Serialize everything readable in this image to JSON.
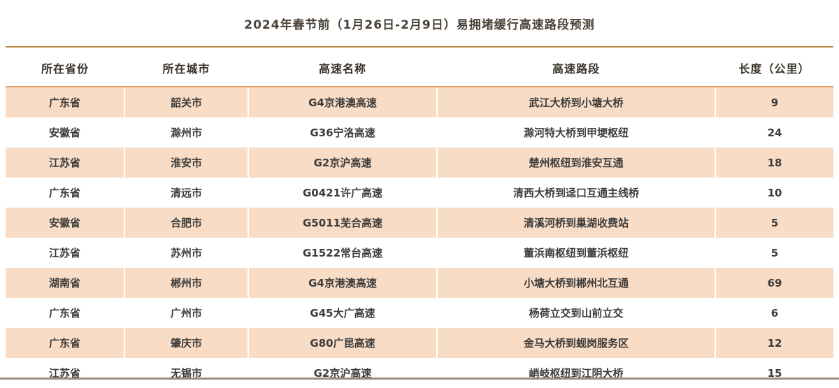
{
  "title": "2024年春节前（1月26日-2月9日）易拥堵缓行高速路段预测",
  "table": {
    "columns": [
      "所在省份",
      "所在城市",
      "高速名称",
      "高速路段",
      "长度（公里）"
    ],
    "rows": [
      [
        "广东省",
        "韶关市",
        "G4京港澳高速",
        "武江大桥到小塘大桥",
        "9"
      ],
      [
        "安徽省",
        "滁州市",
        "G36宁洛高速",
        "滁河特大桥到甲埂枢纽",
        "24"
      ],
      [
        "江苏省",
        "淮安市",
        "G2京沪高速",
        "楚州枢纽到淮安互通",
        "18"
      ],
      [
        "广东省",
        "清远市",
        "G0421许广高速",
        "清西大桥到迳口互通主线桥",
        "10"
      ],
      [
        "安徽省",
        "合肥市",
        "G5011芜合高速",
        "清溪河桥到巢湖收费站",
        "5"
      ],
      [
        "江苏省",
        "苏州市",
        "G1522常台高速",
        "董浜南枢纽到董浜枢纽",
        "5"
      ],
      [
        "湖南省",
        "郴州市",
        "G4京港澳高速",
        "小塘大桥到郴州北互通",
        "69"
      ],
      [
        "广东省",
        "广州市",
        "G45大广高速",
        "杨荷立交到山前立交",
        "6"
      ],
      [
        "广东省",
        "肇庆市",
        "G80广昆高速",
        "金马大桥到蚬岗服务区",
        "12"
      ],
      [
        "江苏省",
        "无锡市",
        "G2京沪高速",
        "峭岐枢纽到江阴大桥",
        "15"
      ]
    ]
  },
  "colors": {
    "title-text": "#4a4138",
    "header-text": "#38322a",
    "body-text": "#3c3c3c",
    "gold-rule": "#b98a42",
    "orange-rule": "#e09c63",
    "peach-row": "#f9dcc5",
    "bottom-strip": "#9d8d80"
  },
  "chart_data": {
    "type": "table",
    "title": "2024年春节前（1月26日-2月9日）易拥堵缓行高速路段预测",
    "columns": [
      "所在省份",
      "所在城市",
      "高速名称",
      "高速路段",
      "长度（公里）"
    ],
    "rows": [
      [
        "广东省",
        "韶关市",
        "G4京港澳高速",
        "武江大桥到小塘大桥",
        9
      ],
      [
        "安徽省",
        "滁州市",
        "G36宁洛高速",
        "滁河特大桥到甲埂枢纽",
        24
      ],
      [
        "江苏省",
        "淮安市",
        "G2京沪高速",
        "楚州枢纽到淮安互通",
        18
      ],
      [
        "广东省",
        "清远市",
        "G0421许广高速",
        "清西大桥到迳口互通主线桥",
        10
      ],
      [
        "安徽省",
        "合肥市",
        "G5011芜合高速",
        "清溪河桥到巢湖收费站",
        5
      ],
      [
        "江苏省",
        "苏州市",
        "G1522常台高速",
        "董浜南枢纽到董浜枢纽",
        5
      ],
      [
        "湖南省",
        "郴州市",
        "G4京港澳高速",
        "小塘大桥到郴州北互通",
        69
      ],
      [
        "广东省",
        "广州市",
        "G45大广高速",
        "杨荷立交到山前立交",
        6
      ],
      [
        "广东省",
        "肇庆市",
        "G80广昆高速",
        "金马大桥到蚬岗服务区",
        12
      ],
      [
        "江苏省",
        "无锡市",
        "G2京沪高速",
        "峭岐枢纽到江阴大桥",
        15
      ]
    ],
    "row_striping": "odd rows peach (#f9dcc5), even rows white",
    "legend_position": "none",
    "grid": "vertical white separators inside striped rows only"
  }
}
